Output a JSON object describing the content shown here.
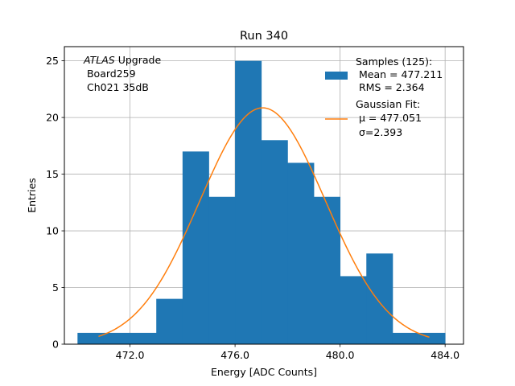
{
  "chart_data": {
    "type": "bar",
    "title": "Run 340",
    "xlabel": "Energy [ADC Counts]",
    "ylabel": "Entries",
    "xlim": [
      469.5,
      484.7
    ],
    "ylim": [
      0,
      26.25
    ],
    "xticks": [
      472.0,
      476.0,
      480.0,
      484.0
    ],
    "xtick_labels": [
      "472.0",
      "476.0",
      "480.0",
      "484.0"
    ],
    "yticks": [
      0,
      5,
      10,
      15,
      20,
      25
    ],
    "ytick_labels": [
      "0",
      "5",
      "10",
      "15",
      "20",
      "25"
    ],
    "grid": true,
    "histogram": {
      "name": "Samples",
      "color": "#1f77b4",
      "bin_edges": [
        470,
        471,
        472,
        473,
        474,
        475,
        476,
        477,
        478,
        479,
        480,
        481,
        482,
        483,
        484
      ],
      "counts": [
        1,
        1,
        1,
        4,
        17,
        13,
        25,
        18,
        16,
        13,
        6,
        8,
        1,
        1
      ]
    },
    "gaussian_fit": {
      "name": "Gaussian Fit",
      "color": "#ff7f0e",
      "mu": 477.051,
      "sigma": 2.393,
      "amplitude": 20.85,
      "x_range": [
        470.8,
        483.4
      ]
    },
    "annotation": {
      "italic_part": "ATLAS",
      "rest": " Upgrade",
      "line2": " Board259",
      "line3": " Ch021 35dB"
    },
    "legend": {
      "placement": "top-right",
      "hist_lines": [
        "Samples (125):",
        " Mean = 477.211",
        " RMS = 2.364"
      ],
      "fit_lines": [
        "Gaussian Fit:",
        " μ = 477.051",
        " σ=2.393"
      ]
    }
  }
}
